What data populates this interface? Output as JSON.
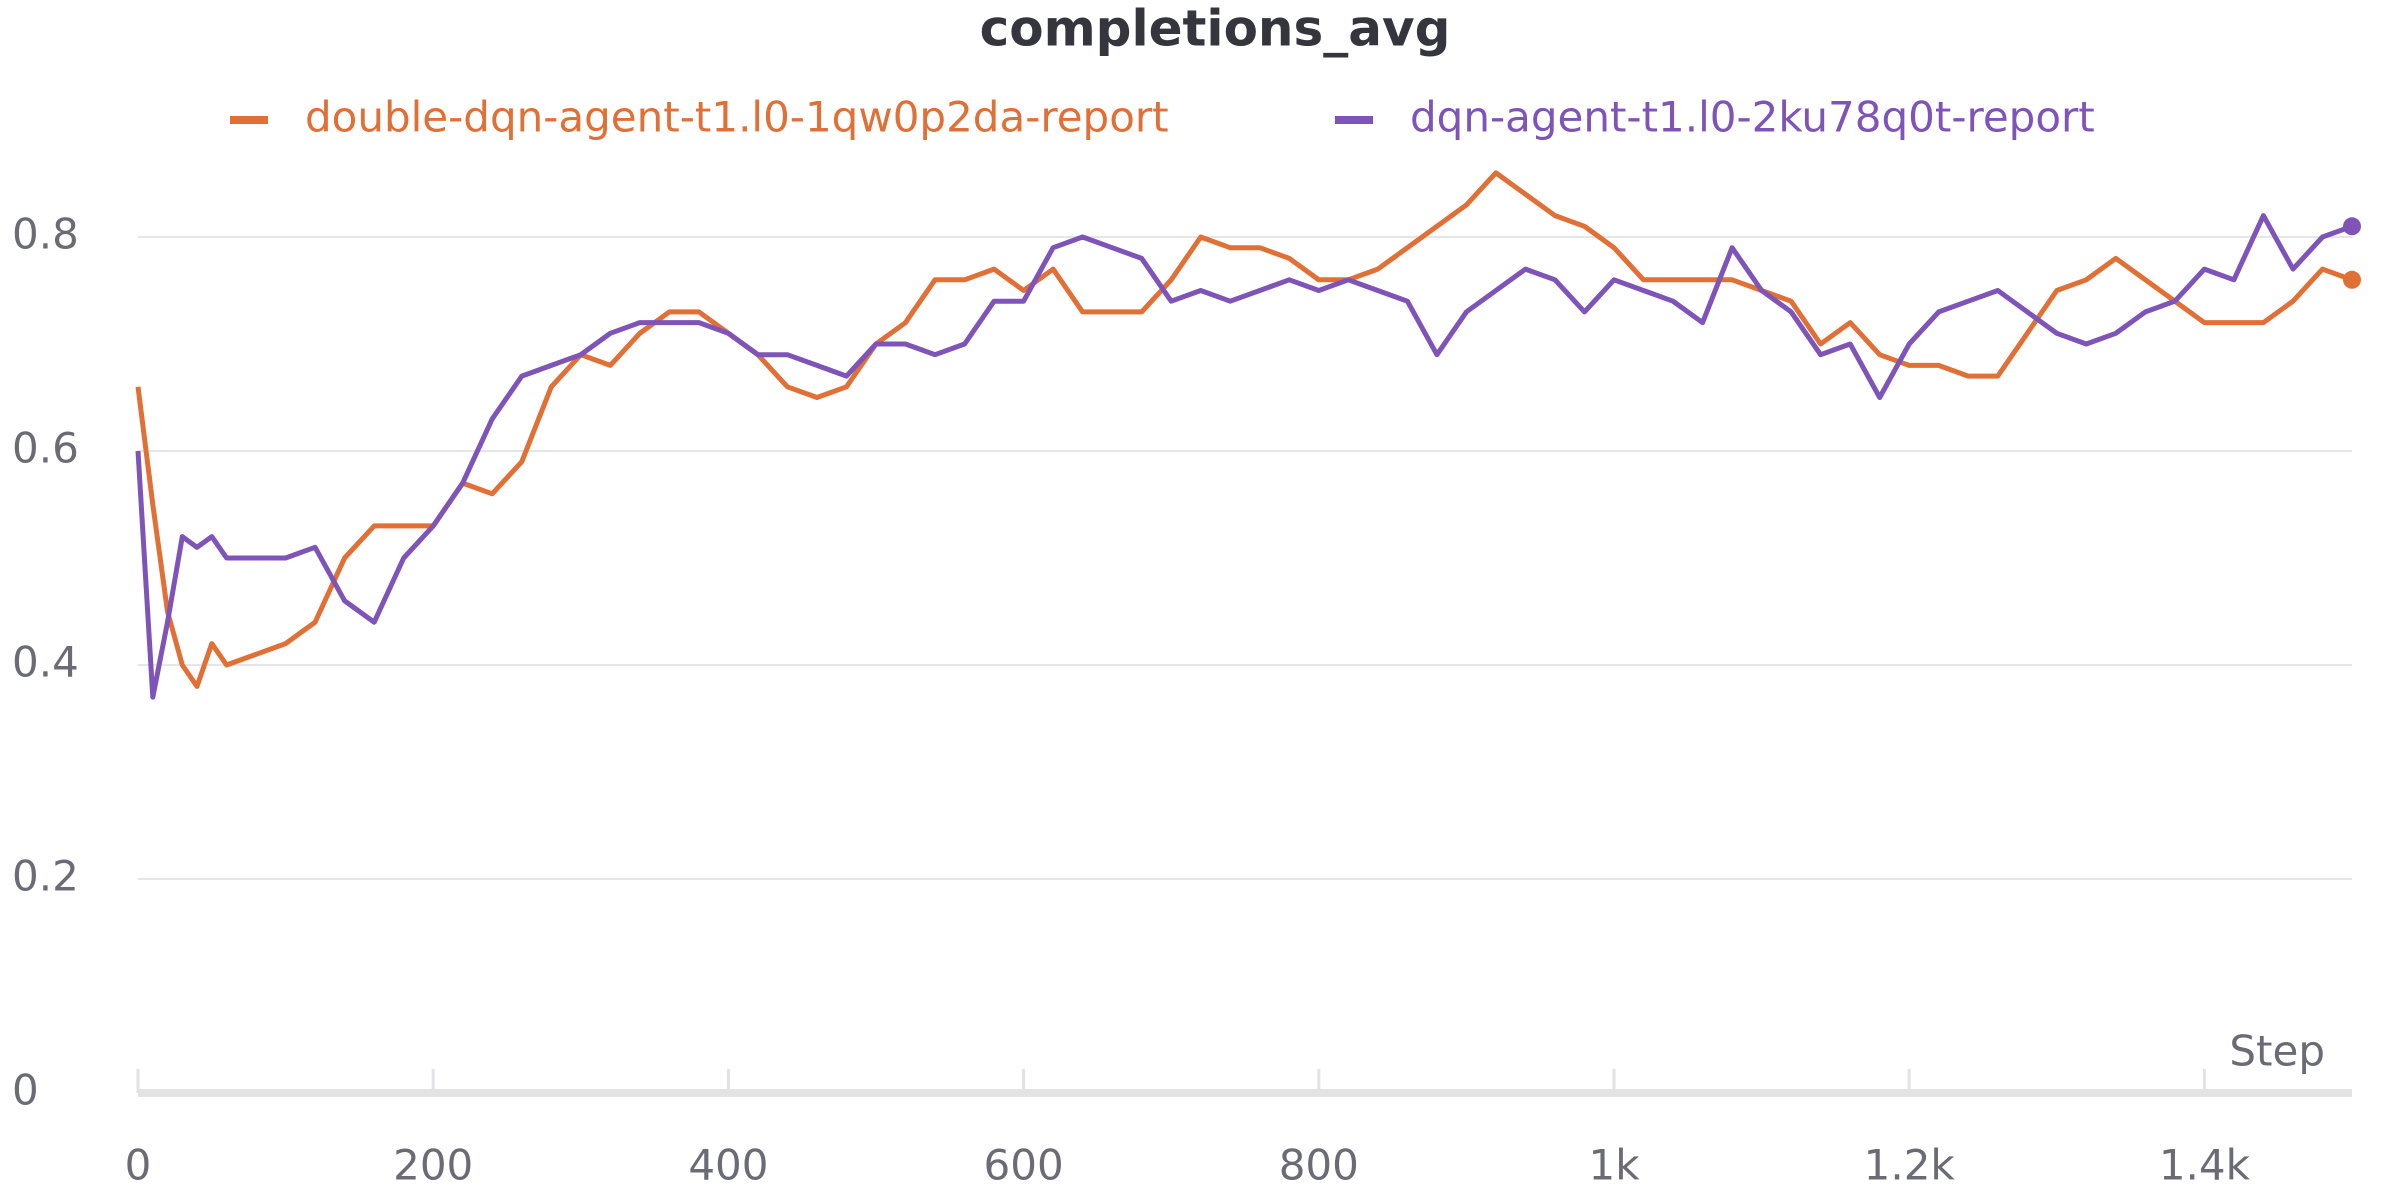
{
  "chart_data": {
    "type": "line",
    "title": "completions_avg",
    "xlabel": "Step",
    "x": [
      0,
      10,
      20,
      30,
      40,
      50,
      60,
      80,
      100,
      120,
      140,
      160,
      180,
      200,
      220,
      240,
      260,
      280,
      300,
      320,
      340,
      360,
      380,
      400,
      420,
      440,
      460,
      480,
      500,
      520,
      540,
      560,
      580,
      600,
      620,
      640,
      660,
      680,
      700,
      720,
      740,
      760,
      780,
      800,
      820,
      840,
      860,
      880,
      900,
      920,
      940,
      960,
      980,
      1000,
      1020,
      1040,
      1060,
      1080,
      1100,
      1120,
      1140,
      1160,
      1180,
      1200,
      1220,
      1240,
      1260,
      1280,
      1300,
      1320,
      1340,
      1360,
      1380,
      1400,
      1420,
      1440,
      1460,
      1480,
      1500
    ],
    "series": [
      {
        "name": "double-dqn-agent-t1.l0-1qw0p2da-report",
        "color": "#e07035",
        "values": [
          0.66,
          0.55,
          0.45,
          0.4,
          0.38,
          0.42,
          0.4,
          0.41,
          0.42,
          0.44,
          0.5,
          0.53,
          0.53,
          0.53,
          0.57,
          0.56,
          0.59,
          0.66,
          0.69,
          0.68,
          0.71,
          0.73,
          0.73,
          0.71,
          0.69,
          0.66,
          0.65,
          0.66,
          0.7,
          0.72,
          0.76,
          0.76,
          0.77,
          0.75,
          0.77,
          0.73,
          0.73,
          0.73,
          0.76,
          0.8,
          0.79,
          0.79,
          0.78,
          0.76,
          0.76,
          0.77,
          0.79,
          0.81,
          0.83,
          0.86,
          0.84,
          0.82,
          0.81,
          0.79,
          0.76,
          0.76,
          0.76,
          0.76,
          0.75,
          0.74,
          0.7,
          0.72,
          0.69,
          0.68,
          0.68,
          0.67,
          0.67,
          0.71,
          0.75,
          0.76,
          0.78,
          0.76,
          0.74,
          0.72,
          0.72,
          0.72,
          0.74,
          0.77,
          0.76
        ]
      },
      {
        "name": "dqn-agent-t1.l0-2ku78q0t-report",
        "color": "#7e54b8",
        "values": [
          0.6,
          0.37,
          0.44,
          0.52,
          0.51,
          0.52,
          0.5,
          0.5,
          0.5,
          0.51,
          0.46,
          0.44,
          0.5,
          0.53,
          0.57,
          0.63,
          0.67,
          0.68,
          0.69,
          0.71,
          0.72,
          0.72,
          0.72,
          0.71,
          0.69,
          0.69,
          0.68,
          0.67,
          0.7,
          0.7,
          0.69,
          0.7,
          0.74,
          0.74,
          0.79,
          0.8,
          0.79,
          0.78,
          0.74,
          0.75,
          0.74,
          0.75,
          0.76,
          0.75,
          0.76,
          0.75,
          0.74,
          0.69,
          0.73,
          0.75,
          0.77,
          0.76,
          0.73,
          0.76,
          0.75,
          0.74,
          0.72,
          0.79,
          0.75,
          0.73,
          0.69,
          0.7,
          0.65,
          0.7,
          0.73,
          0.74,
          0.75,
          0.73,
          0.71,
          0.7,
          0.71,
          0.73,
          0.74,
          0.77,
          0.76,
          0.82,
          0.77,
          0.8,
          0.81
        ]
      }
    ],
    "xlim": [
      0,
      1500
    ],
    "xticks": [
      0,
      200,
      400,
      600,
      800,
      {
        "value": 1000,
        "label": "1k"
      },
      {
        "value": 1200,
        "label": "1.2k"
      },
      {
        "value": 1400,
        "label": "1.4k"
      }
    ],
    "ylim": [
      0,
      0.9
    ],
    "yticks": [
      0,
      0.2,
      0.4,
      0.6,
      0.8
    ],
    "grid": true
  }
}
